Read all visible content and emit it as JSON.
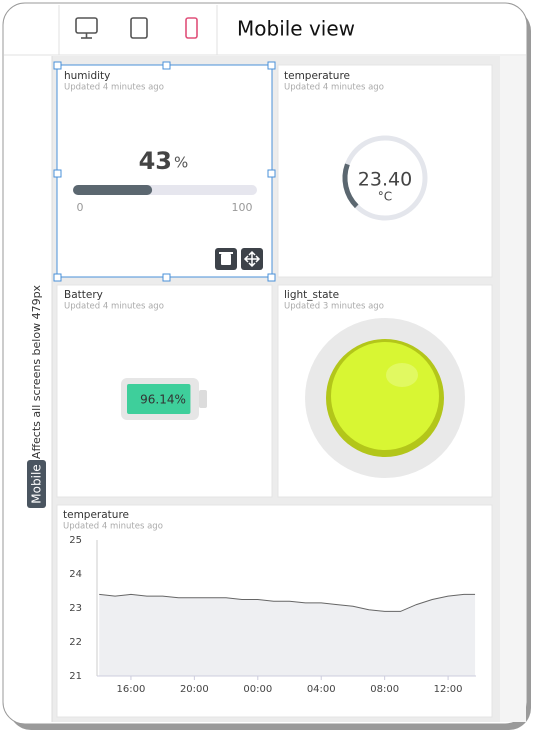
{
  "toolbar": {
    "title": "Mobile view"
  },
  "sidebar": {
    "badge": "Mobile",
    "note": "Affects all screens below 479px"
  },
  "widgets": [
    {
      "title": "humidity",
      "updated": "Updated 4 minutes ago",
      "value": 43,
      "unit": "%",
      "min": 0,
      "max": 100
    },
    {
      "title": "temperature",
      "updated": "Updated 4 minutes ago",
      "value_label": "23.40",
      "unit": "°C"
    },
    {
      "title": "Battery",
      "updated": "Updated 4 minutes ago",
      "value": 96.14,
      "value_label": "96.14%"
    },
    {
      "title": "light_state",
      "updated": "Updated 3 minutes ago"
    }
  ],
  "chart_data": {
    "type": "line",
    "title": "temperature",
    "subtitle": "Updated 4 minutes ago",
    "x": [
      14,
      15,
      16,
      17,
      18,
      19,
      20,
      21,
      22,
      23,
      24,
      25,
      26,
      27,
      28,
      29,
      30,
      31,
      32,
      33,
      34,
      35,
      36,
      37,
      37.7
    ],
    "series": [
      {
        "name": "temperature",
        "color": "#666666",
        "values": [
          23.4,
          23.35,
          23.4,
          23.35,
          23.35,
          23.3,
          23.3,
          23.3,
          23.3,
          23.25,
          23.25,
          23.2,
          23.2,
          23.15,
          23.15,
          23.1,
          23.05,
          22.95,
          22.9,
          22.9,
          23.1,
          23.25,
          23.35,
          23.4,
          23.4
        ]
      }
    ],
    "xlim": [
      13.86,
      37.76
    ],
    "xticks": [
      {
        "value": 16,
        "label": "16:00"
      },
      {
        "value": 20,
        "label": "20:00"
      },
      {
        "value": 24,
        "label": "00:00"
      },
      {
        "value": 28,
        "label": "04:00"
      },
      {
        "value": 32,
        "label": "08:00"
      },
      {
        "value": 36,
        "label": "12:00"
      }
    ],
    "ylim": [
      21,
      25
    ],
    "yticks": [
      21,
      22,
      23,
      24,
      25
    ],
    "grid": false,
    "area": true
  }
}
